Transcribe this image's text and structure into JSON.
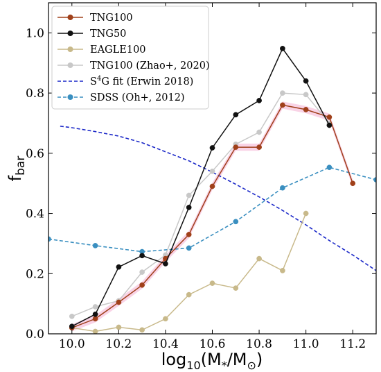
{
  "chart_data": {
    "type": "line",
    "xlabel_main": "log",
    "xlabel_sub": "10",
    "xlabel_rest": "(M",
    "xlabel_star": "*",
    "xlabel_mid": "/M",
    "xlabel_sun": "⊙",
    "xlabel_end": ")",
    "ylabel_main": "f",
    "ylabel_sub": "bar",
    "xlim": [
      9.9,
      11.3
    ],
    "ylim": [
      0.0,
      1.1
    ],
    "xticks": [
      10.0,
      10.2,
      10.4,
      10.6,
      10.8,
      11.0,
      11.2
    ],
    "xtick_labels": [
      "10.0",
      "10.2",
      "10.4",
      "10.6",
      "10.8",
      "11.0",
      "11.2"
    ],
    "yticks": [
      0.0,
      0.2,
      0.4,
      0.6,
      0.8,
      1.0
    ],
    "ytick_labels": [
      "0.0",
      "0.2",
      "0.4",
      "0.6",
      "0.8",
      "1.0"
    ],
    "grid": false,
    "legend_position": "top-left",
    "series": [
      {
        "name": "TNG100",
        "color": "#a0401a",
        "style": "solid-markers-with-pink-band",
        "x": [
          10.0,
          10.1,
          10.2,
          10.3,
          10.4,
          10.5,
          10.6,
          10.7,
          10.8,
          10.9,
          11.0,
          11.1,
          11.2
        ],
        "values": [
          0.02,
          0.05,
          0.105,
          0.162,
          0.25,
          0.33,
          0.49,
          0.62,
          0.62,
          0.76,
          0.745,
          0.72,
          0.5
        ]
      },
      {
        "name": "TNG50",
        "color": "#111111",
        "style": "solid-markers",
        "x": [
          10.0,
          10.1,
          10.2,
          10.3,
          10.4,
          10.5,
          10.6,
          10.7,
          10.8,
          10.9,
          11.0,
          11.1
        ],
        "values": [
          0.025,
          0.065,
          0.222,
          0.26,
          0.233,
          0.42,
          0.618,
          0.728,
          0.775,
          0.948,
          0.84,
          0.693
        ]
      },
      {
        "name": "EAGLE100",
        "color": "#c8b98a",
        "style": "solid-markers",
        "x": [
          10.0,
          10.1,
          10.2,
          10.3,
          10.4,
          10.5,
          10.6,
          10.7,
          10.8,
          10.9,
          11.0
        ],
        "values": [
          0.02,
          0.008,
          0.022,
          0.013,
          0.05,
          0.13,
          0.168,
          0.152,
          0.25,
          0.21,
          0.4
        ]
      },
      {
        "name": "TNG100 (Zhao+, 2020)",
        "color": "#c8c8c8",
        "style": "solid-markers",
        "x": [
          10.0,
          10.1,
          10.2,
          10.3,
          10.4,
          10.5,
          10.6,
          10.7,
          10.8,
          10.9,
          11.0,
          11.1
        ],
        "values": [
          0.058,
          0.09,
          0.11,
          0.205,
          0.262,
          0.46,
          0.54,
          0.63,
          0.67,
          0.8,
          0.795,
          0.7
        ]
      },
      {
        "name_prefix": "S",
        "name_sup": "4",
        "name_suffix": "G fit (Erwin 2018)",
        "color": "#1b28c8",
        "style": "dashed",
        "x": [
          9.95,
          10.0,
          10.1,
          10.2,
          10.3,
          10.4,
          10.5,
          10.6,
          10.7,
          10.8,
          10.9,
          11.0,
          11.1,
          11.2,
          11.3
        ],
        "values": [
          0.69,
          0.685,
          0.672,
          0.657,
          0.635,
          0.605,
          0.575,
          0.537,
          0.497,
          0.455,
          0.41,
          0.362,
          0.31,
          0.262,
          0.21
        ]
      },
      {
        "name": "SDSS (Oh+, 2012)",
        "color": "#3a8fc0",
        "style": "dashed-markers",
        "x": [
          9.9,
          10.1,
          10.3,
          10.5,
          10.7,
          10.9,
          11.1,
          11.3
        ],
        "values": [
          0.315,
          0.293,
          0.273,
          0.285,
          0.373,
          0.485,
          0.553,
          0.512
        ]
      }
    ]
  }
}
